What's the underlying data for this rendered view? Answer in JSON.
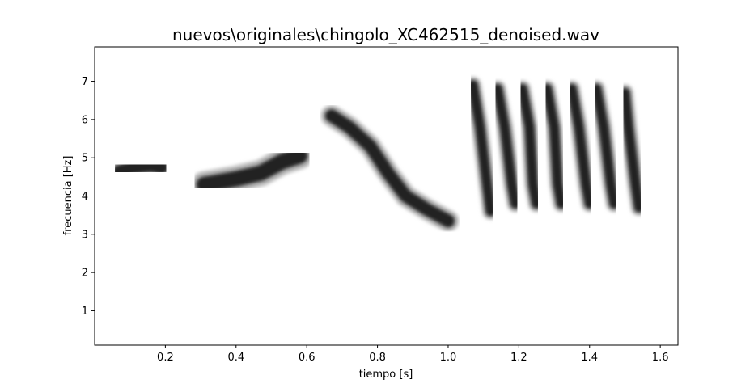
{
  "chart_data": {
    "type": "heatmap",
    "title": "nuevos\\originales\\chingolo_XC462515_denoised.wav",
    "xlabel": "tiempo [s]",
    "ylabel": "frecuencia [Hz]",
    "xlim": [
      0.0,
      1.65
    ],
    "ylim": [
      0.1,
      7.9
    ],
    "xticks": [
      0.2,
      0.4,
      0.6,
      0.8,
      1.0,
      1.2,
      1.4,
      1.6
    ],
    "xtick_labels": [
      "0.2",
      "0.4",
      "0.6",
      "0.8",
      "1.0",
      "1.2",
      "1.4",
      "1.6"
    ],
    "yticks": [
      1,
      2,
      3,
      4,
      5,
      6,
      7
    ],
    "ytick_labels": [
      "1",
      "2",
      "3",
      "4",
      "5",
      "6",
      "7"
    ],
    "colormap": "gray_r",
    "background": "#ffffff",
    "grid": false,
    "legend": "none",
    "series": [
      {
        "points": [
          [
            0.07,
            4.65
          ],
          [
            0.11,
            4.75
          ],
          [
            0.16,
            4.8
          ],
          [
            0.19,
            4.75
          ]
        ],
        "width": 0.45
      },
      {
        "points": [
          [
            0.31,
            4.3
          ],
          [
            0.4,
            4.45
          ],
          [
            0.47,
            4.6
          ],
          [
            0.53,
            4.9
          ],
          [
            0.58,
            5.05
          ]
        ],
        "width": 0.55
      },
      {
        "points": [
          [
            0.67,
            6.1
          ],
          [
            0.72,
            5.8
          ],
          [
            0.78,
            5.3
          ],
          [
            0.83,
            4.6
          ],
          [
            0.88,
            4.0
          ],
          [
            0.94,
            3.65
          ],
          [
            1.0,
            3.35
          ]
        ],
        "width": 0.45
      },
      {
        "points": [
          [
            1.07,
            6.9
          ],
          [
            1.09,
            5.8
          ],
          [
            1.11,
            4.3
          ],
          [
            1.12,
            3.6
          ]
        ],
        "width": 0.35
      },
      {
        "points": [
          [
            1.14,
            6.8
          ],
          [
            1.16,
            5.8
          ],
          [
            1.18,
            4.3
          ],
          [
            1.19,
            3.8
          ]
        ],
        "width": 0.35
      },
      {
        "points": [
          [
            1.21,
            6.8
          ],
          [
            1.23,
            5.8
          ],
          [
            1.24,
            4.3
          ],
          [
            1.25,
            3.8
          ]
        ],
        "width": 0.35
      },
      {
        "points": [
          [
            1.28,
            6.8
          ],
          [
            1.3,
            5.8
          ],
          [
            1.31,
            4.3
          ],
          [
            1.32,
            3.8
          ]
        ],
        "width": 0.35
      },
      {
        "points": [
          [
            1.35,
            6.8
          ],
          [
            1.37,
            5.8
          ],
          [
            1.39,
            4.3
          ],
          [
            1.4,
            3.8
          ]
        ],
        "width": 0.35
      },
      {
        "points": [
          [
            1.42,
            6.8
          ],
          [
            1.44,
            5.8
          ],
          [
            1.46,
            4.3
          ],
          [
            1.47,
            3.8
          ]
        ],
        "width": 0.35
      },
      {
        "points": [
          [
            1.5,
            6.7
          ],
          [
            1.51,
            5.8
          ],
          [
            1.53,
            4.3
          ],
          [
            1.54,
            3.7
          ]
        ],
        "width": 0.35
      }
    ]
  }
}
